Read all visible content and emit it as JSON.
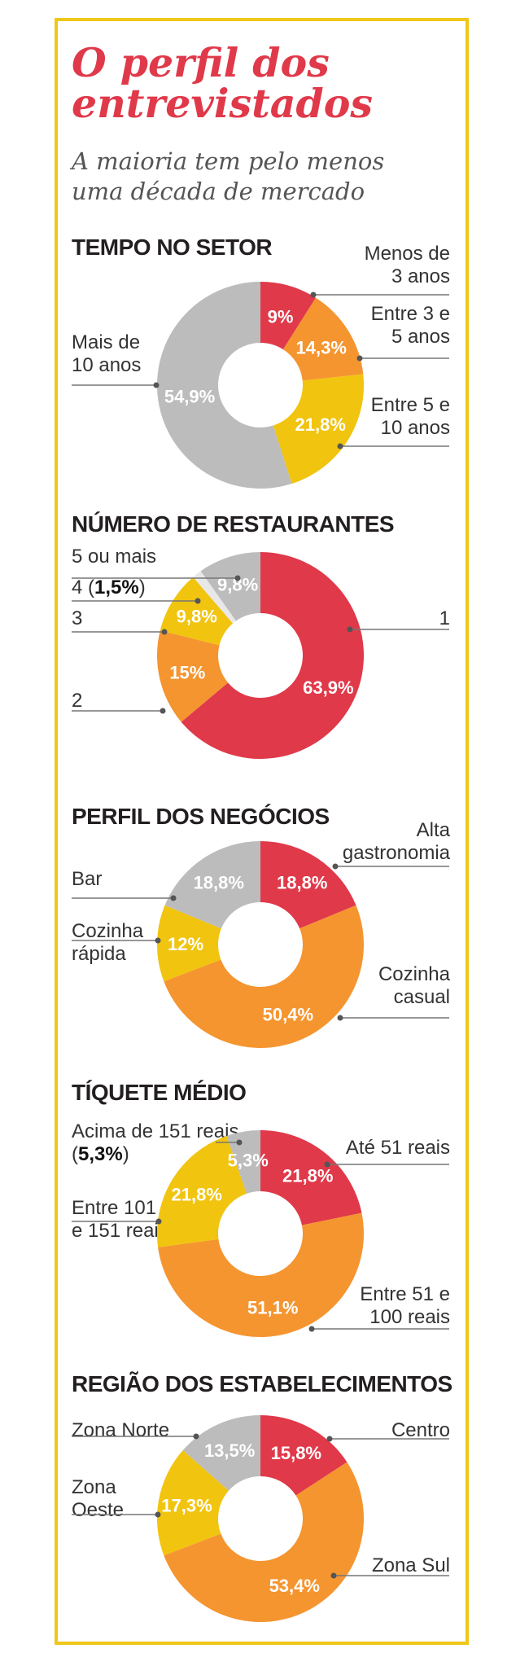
{
  "title": {
    "line1": "O perfil dos",
    "line2": "entrevistados"
  },
  "subtitle": {
    "line1": "A maioria tem pelo menos",
    "line2": "uma década de mercado"
  },
  "colors": {
    "red": "#e0394a",
    "orange": "#f59530",
    "yellow": "#f1c40f",
    "gray": "#bcbcbc",
    "frame": "#efc718",
    "title": "#e0394a"
  },
  "chart_data": [
    {
      "type": "pie",
      "title": "TEMPO NO SETOR",
      "slices": [
        {
          "label": "Menos de 3 anos",
          "value": 9,
          "display": "9%",
          "color": "#e0394a"
        },
        {
          "label": "Entre 3 e 5 anos",
          "value": 14.3,
          "display": "14,3%",
          "color": "#f59530"
        },
        {
          "label": "Entre 5 e 10 anos",
          "value": 21.8,
          "display": "21,8%",
          "color": "#f1c40f"
        },
        {
          "label": "Mais de 10 anos",
          "value": 54.9,
          "display": "54,9%",
          "color": "#bcbcbc"
        }
      ]
    },
    {
      "type": "pie",
      "title": "NÚMERO DE RESTAURANTES",
      "slices": [
        {
          "label": "1",
          "value": 63.9,
          "display": "63,9%",
          "color": "#e0394a"
        },
        {
          "label": "2",
          "value": 15,
          "display": "15%",
          "color": "#f59530"
        },
        {
          "label": "3",
          "value": 9.8,
          "display": "9,8%",
          "color": "#f1c40f"
        },
        {
          "label": "4",
          "value": 1.5,
          "display": "1,5%",
          "color": "#e8e8e8"
        },
        {
          "label": "5 ou mais",
          "value": 9.8,
          "display": "9,8%",
          "color": "#bcbcbc"
        }
      ]
    },
    {
      "type": "pie",
      "title": "PERFIL DOS NEGÓCIOS",
      "slices": [
        {
          "label": "Alta gastronomia",
          "value": 18.8,
          "display": "18,8%",
          "color": "#e0394a"
        },
        {
          "label": "Cozinha casual",
          "value": 50.4,
          "display": "50,4%",
          "color": "#f59530"
        },
        {
          "label": "Cozinha rápida",
          "value": 12,
          "display": "12%",
          "color": "#f1c40f"
        },
        {
          "label": "Bar",
          "value": 18.8,
          "display": "18,8%",
          "color": "#bcbcbc"
        }
      ]
    },
    {
      "type": "pie",
      "title": "TÍQUETE MÉDIO",
      "slices": [
        {
          "label": "Até 51 reais",
          "value": 21.8,
          "display": "21,8%",
          "color": "#e0394a"
        },
        {
          "label": "Entre 51 e 100 reais",
          "value": 51.1,
          "display": "51,1%",
          "color": "#f59530"
        },
        {
          "label": "Entre 101 e 151 reais",
          "value": 21.8,
          "display": "21,8%",
          "color": "#f1c40f"
        },
        {
          "label": "Acima de 151 reais",
          "value": 5.3,
          "display": "5,3%",
          "color": "#bcbcbc"
        }
      ]
    },
    {
      "type": "pie",
      "title": "REGIÃO DOS ESTABELECIMENTOS",
      "slices": [
        {
          "label": "Centro",
          "value": 15.8,
          "display": "15,8%",
          "color": "#e0394a"
        },
        {
          "label": "Zona Sul",
          "value": 53.4,
          "display": "53,4%",
          "color": "#f59530"
        },
        {
          "label": "Zona Oeste",
          "value": 17.3,
          "display": "17,3%",
          "color": "#f1c40f"
        },
        {
          "label": "Zona Norte",
          "value": 13.5,
          "display": "13,5%",
          "color": "#bcbcbc"
        }
      ]
    }
  ],
  "labels": {
    "c0": {
      "s0": "Menos de\n3 anos",
      "s1": "Entre 3 e\n5 anos",
      "s2": "Entre 5 e\n10 anos",
      "s3": "Mais de\n10 anos"
    },
    "c1": {
      "s0": "1",
      "s1": "2",
      "s2": "3",
      "s3_prefix": "4 (",
      "s3_value": "1,5%",
      "s3_suffix": ")",
      "s4": "5 ou mais"
    },
    "c2": {
      "s0": "Alta\ngastronomia",
      "s1": "Cozinha\ncasual",
      "s2": "Cozinha\nrápida",
      "s3": "Bar"
    },
    "c3": {
      "s0": "Até 51 reais",
      "s1": "Entre 51 e\n100 reais",
      "s2": "Entre 101\ne 151 reais",
      "s3_line1": "Acima de 151 reais",
      "s3_prefix": "(",
      "s3_value": "5,3%",
      "s3_suffix": ")"
    },
    "c4": {
      "s0": "Centro",
      "s1": "Zona Sul",
      "s2": "Zona\nOeste",
      "s3": "Zona Norte"
    }
  }
}
